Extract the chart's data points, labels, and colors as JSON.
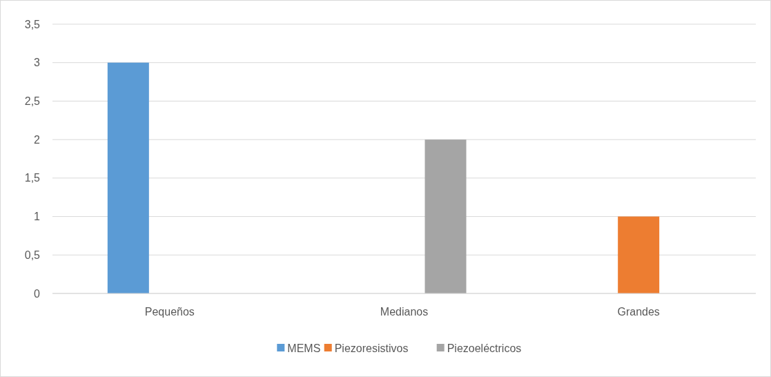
{
  "chart_data": {
    "type": "bar",
    "categories": [
      "Pequeños",
      "Medianos",
      "Grandes"
    ],
    "series": [
      {
        "name": "MEMS",
        "color": "#5b9bd5",
        "values": [
          3,
          0,
          0
        ]
      },
      {
        "name": "Piezoresistivos",
        "color": "#ed7d31",
        "values": [
          0,
          0,
          1
        ]
      },
      {
        "name": "Piezoeléctricos",
        "color": "#a5a5a5",
        "values": [
          0,
          2,
          0
        ]
      }
    ],
    "ylim": [
      0,
      3.5
    ],
    "yticks": [
      {
        "value": 0,
        "label": "0"
      },
      {
        "value": 0.5,
        "label": "0,5"
      },
      {
        "value": 1,
        "label": "1"
      },
      {
        "value": 1.5,
        "label": "1,5"
      },
      {
        "value": 2,
        "label": "2"
      },
      {
        "value": 2.5,
        "label": "2,5"
      },
      {
        "value": 3,
        "label": "3"
      },
      {
        "value": 3.5,
        "label": "3,5"
      }
    ],
    "grid": "y",
    "legend": "bottom"
  }
}
